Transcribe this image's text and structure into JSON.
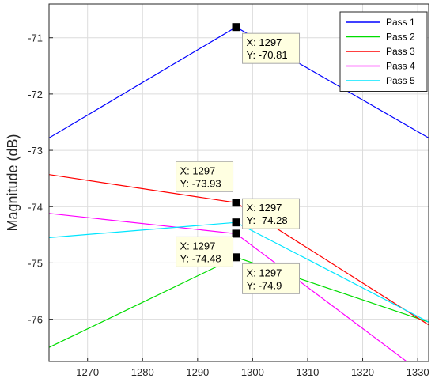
{
  "chart_data": {
    "type": "line",
    "title": "",
    "xlabel": "",
    "ylabel": "Magnitude (dB)",
    "xlim": [
      1263,
      1332
    ],
    "ylim": [
      -76.75,
      -70.4
    ],
    "grid": true,
    "legend_position": "top-right",
    "xticks": [
      1270,
      1280,
      1290,
      1300,
      1310,
      1320,
      1330
    ],
    "yticks": [
      -71,
      -72,
      -73,
      -74,
      -75,
      -76
    ],
    "series": [
      {
        "name": "Pass 1",
        "color": "#0000ff",
        "x": [
          1263,
          1297,
          1332
        ],
        "y": [
          -72.78,
          -70.81,
          -72.78
        ]
      },
      {
        "name": "Pass 2",
        "color": "#00dd00",
        "x": [
          1263,
          1297,
          1332
        ],
        "y": [
          -76.5,
          -74.9,
          -76.05
        ]
      },
      {
        "name": "Pass 3",
        "color": "#ff0000",
        "x": [
          1263,
          1297,
          1332
        ],
        "y": [
          -73.43,
          -73.93,
          -76.1
        ]
      },
      {
        "name": "Pass 4",
        "color": "#ff00ff",
        "x": [
          1263,
          1297,
          1328
        ],
        "y": [
          -74.12,
          -74.48,
          -76.75
        ]
      },
      {
        "name": "Pass 5",
        "color": "#00e5ff",
        "x": [
          1263,
          1297,
          1332
        ],
        "y": [
          -74.55,
          -74.28,
          -76.05
        ]
      }
    ],
    "datatips": [
      {
        "x_text": "X: 1297",
        "y_text": "Y: -70.81",
        "x": 1297,
        "y": -70.81,
        "side": "below-right"
      },
      {
        "x_text": "X: 1297",
        "y_text": "Y: -73.93",
        "x": 1297,
        "y": -73.93,
        "side": "above-left"
      },
      {
        "x_text": "X: 1297",
        "y_text": "Y: -74.28",
        "x": 1297,
        "y": -74.28,
        "side": "above-right"
      },
      {
        "x_text": "X: 1297",
        "y_text": "Y: -74.48",
        "x": 1297,
        "y": -74.48,
        "side": "below-left"
      },
      {
        "x_text": "X: 1297",
        "y_text": "Y: -74.9",
        "x": 1297,
        "y": -74.9,
        "side": "below-right"
      }
    ]
  }
}
